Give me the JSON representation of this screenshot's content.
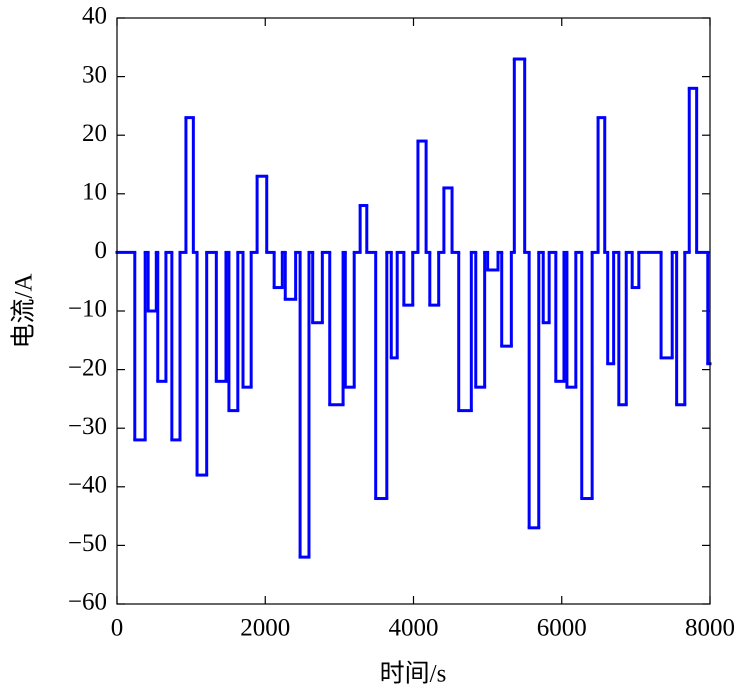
{
  "chart_data": {
    "type": "step",
    "xlabel": "时间/s",
    "ylabel": "电流/A",
    "color": "#0000ff",
    "x": [
      0,
      240,
      380,
      420,
      530,
      550,
      660,
      740,
      850,
      930,
      1030,
      1080,
      1210,
      1340,
      1470,
      1510,
      1630,
      1700,
      1810,
      1890,
      2020,
      2120,
      2230,
      2270,
      2410,
      2470,
      2590,
      2640,
      2770,
      2870,
      3050,
      3080,
      3200,
      3280,
      3370,
      3490,
      3640,
      3700,
      3780,
      3870,
      3990,
      4060,
      4170,
      4220,
      4340,
      4410,
      4520,
      4610,
      4780,
      4840,
      4960,
      5000,
      5140,
      5190,
      5320,
      5360,
      5500,
      5560,
      5690,
      5750,
      5830,
      5920,
      6030,
      6070,
      6190,
      6270,
      6410,
      6490,
      6580,
      6620,
      6700,
      6770,
      6870,
      6950,
      7040,
      7340,
      7490,
      7550,
      7660,
      7720,
      7820,
      7970
    ],
    "values": [
      0,
      -32,
      0,
      -10,
      0,
      -22,
      0,
      -32,
      0,
      23,
      0,
      -38,
      0,
      -22,
      0,
      -27,
      0,
      -23,
      0,
      13,
      0,
      -6,
      0,
      -8,
      0,
      -52,
      0,
      -12,
      0,
      -26,
      0,
      -23,
      0,
      8,
      0,
      -42,
      0,
      -18,
      0,
      -9,
      0,
      19,
      0,
      -9,
      0,
      11,
      0,
      -27,
      0,
      -23,
      0,
      -3,
      0,
      -16,
      0,
      33,
      0,
      -47,
      0,
      -12,
      0,
      -22,
      0,
      -23,
      0,
      -42,
      0,
      23,
      0,
      -19,
      0,
      -26,
      0,
      -6,
      0,
      -18,
      0,
      -26,
      0,
      28,
      0,
      -19
    ],
    "xlim": [
      0,
      8000
    ],
    "xticks": [
      0,
      2000,
      4000,
      6000,
      8000
    ],
    "ylim": [
      -60,
      40
    ],
    "yticks": [
      {
        "value": -60,
        "label": "−60"
      },
      {
        "value": -50,
        "label": "−50"
      },
      {
        "value": -40,
        "label": "−40"
      },
      {
        "value": -30,
        "label": "−30"
      },
      {
        "value": -20,
        "label": "−20"
      },
      {
        "value": -10,
        "label": "−10"
      },
      0,
      10,
      20,
      30,
      40
    ]
  }
}
